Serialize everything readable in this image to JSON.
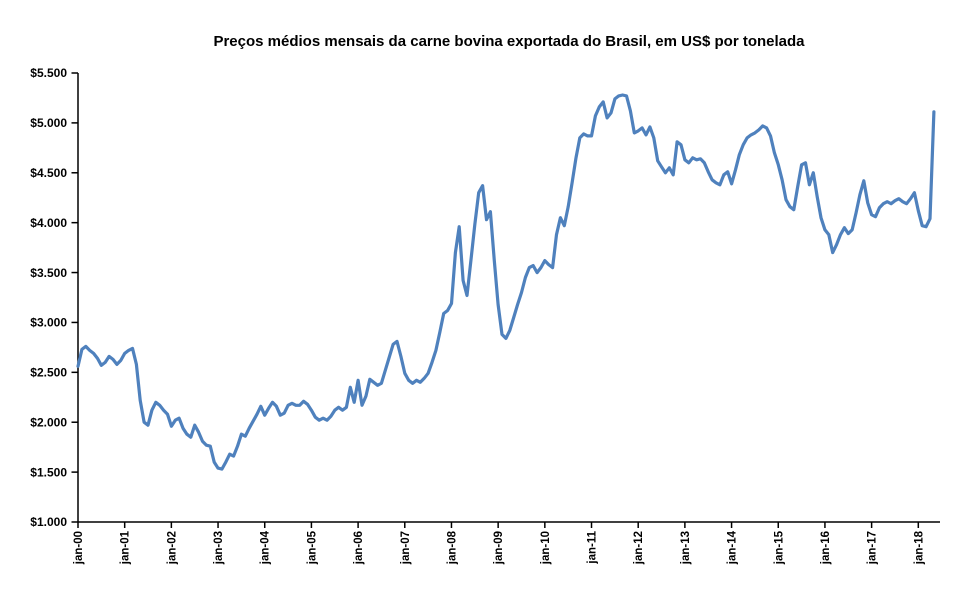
{
  "chart_data": {
    "type": "line",
    "title": "Preços médios mensais da carne bovina exportada do Brasil, em US$ por tonelada",
    "x_tick_labels": [
      "jan-00",
      "jan-01",
      "jan-02",
      "jan-03",
      "jan-04",
      "jan-05",
      "jan-06",
      "jan-07",
      "jan-08",
      "jan-09",
      "jan-10",
      "jan-11",
      "jan-12",
      "jan-13",
      "jan-14",
      "jan-15",
      "jan-16",
      "jan-17",
      "jan-18"
    ],
    "y_tick_labels_top_down": [
      "$5.500",
      "$5.000",
      "$4.500",
      "$4.000",
      "$3.500",
      "$3.000",
      "$2.500",
      "$2.000",
      "$1.500",
      "$1.000"
    ],
    "ylim": [
      1000,
      5500
    ],
    "frequency": "monthly",
    "x_start": "jan-00",
    "grid": false,
    "legend_position": "none",
    "line_color": "#4F81BD",
    "axis_color": "#000000",
    "series": [
      {
        "values": [
          2560,
          2730,
          2760,
          2720,
          2690,
          2640,
          2570,
          2600,
          2660,
          2630,
          2580,
          2620,
          2690,
          2720,
          2740,
          2580,
          2220,
          2000,
          1970,
          2120,
          2200,
          2170,
          2120,
          2080,
          1960,
          2020,
          2040,
          1940,
          1880,
          1850,
          1970,
          1900,
          1810,
          1770,
          1760,
          1600,
          1540,
          1530,
          1600,
          1680,
          1660,
          1760,
          1880,
          1860,
          1940,
          2010,
          2080,
          2160,
          2070,
          2140,
          2200,
          2160,
          2070,
          2090,
          2170,
          2190,
          2170,
          2170,
          2210,
          2180,
          2120,
          2050,
          2020,
          2040,
          2020,
          2060,
          2120,
          2150,
          2120,
          2150,
          2350,
          2200,
          2420,
          2170,
          2260,
          2430,
          2400,
          2370,
          2390,
          2520,
          2650,
          2780,
          2810,
          2660,
          2490,
          2420,
          2390,
          2420,
          2400,
          2440,
          2490,
          2600,
          2720,
          2900,
          3090,
          3120,
          3190,
          3700,
          3960,
          3420,
          3270,
          3620,
          3980,
          4300,
          4370,
          4030,
          4110,
          3620,
          3180,
          2880,
          2840,
          2920,
          3050,
          3180,
          3300,
          3450,
          3550,
          3570,
          3500,
          3550,
          3620,
          3580,
          3550,
          3880,
          4050,
          3970,
          4160,
          4400,
          4650,
          4850,
          4890,
          4870,
          4870,
          5070,
          5160,
          5210,
          5050,
          5100,
          5240,
          5270,
          5280,
          5270,
          5120,
          4900,
          4920,
          4950,
          4880,
          4960,
          4850,
          4620,
          4560,
          4500,
          4550,
          4480,
          4810,
          4780,
          4630,
          4600,
          4650,
          4630,
          4640,
          4600,
          4510,
          4430,
          4400,
          4380,
          4480,
          4510,
          4390,
          4530,
          4680,
          4780,
          4850,
          4880,
          4900,
          4930,
          4970,
          4950,
          4870,
          4700,
          4580,
          4430,
          4230,
          4160,
          4130,
          4360,
          4580,
          4600,
          4380,
          4500,
          4260,
          4050,
          3930,
          3880,
          3700,
          3780,
          3880,
          3950,
          3890,
          3930,
          4100,
          4280,
          4420,
          4200,
          4080,
          4060,
          4150,
          4190,
          4210,
          4190,
          4220,
          4240,
          4210,
          4190,
          4240,
          4300,
          4120,
          3970,
          3960,
          4040,
          5110
        ]
      }
    ]
  }
}
